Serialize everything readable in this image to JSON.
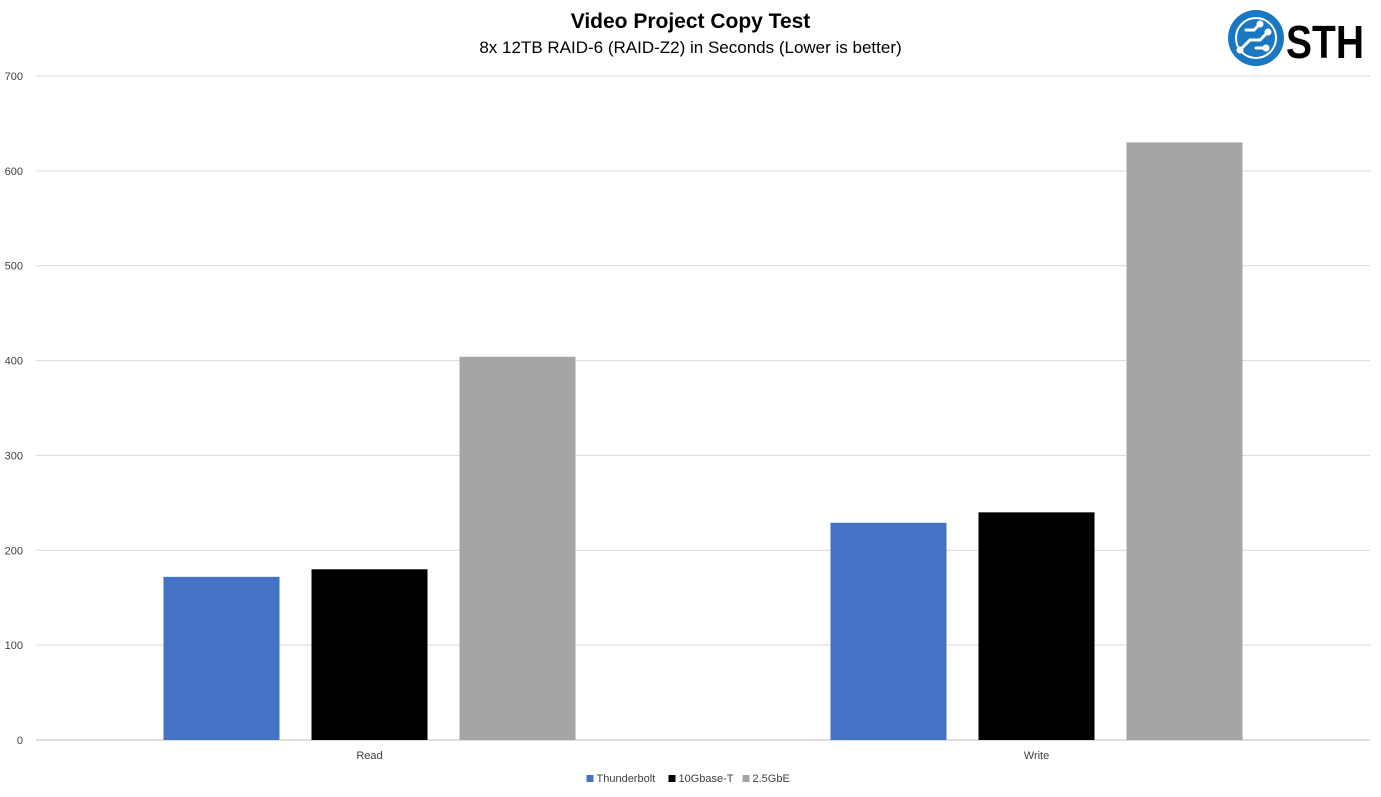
{
  "logo": {
    "text": "STH",
    "icon": "circuit-globe-icon",
    "color": "#1a78c2"
  },
  "chart_data": {
    "type": "bar",
    "title": "Video Project Copy Test",
    "subtitle": "8x 12TB RAID-6 (RAID-Z2) in Seconds (Lower is better)",
    "categories": [
      "Read",
      "Write"
    ],
    "series": [
      {
        "name": "Thunderbolt",
        "color": "#4472c4",
        "values": [
          172,
          229
        ]
      },
      {
        "name": "10Gbase-T",
        "color": "#000000",
        "values": [
          180,
          240
        ]
      },
      {
        "name": "2.5GbE",
        "color": "#a5a5a5",
        "values": [
          404,
          630
        ]
      }
    ],
    "ylim": [
      0,
      700
    ],
    "yticks": [
      0,
      100,
      200,
      300,
      400,
      500,
      600,
      700
    ],
    "grid": true,
    "legend_position": "bottom"
  }
}
